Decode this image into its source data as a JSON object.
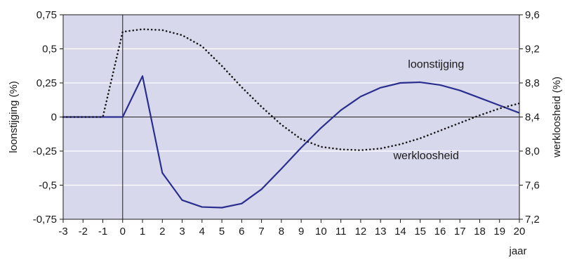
{
  "chart_data": {
    "type": "line",
    "title": "",
    "xlabel": "jaar",
    "ylabel_left": "loonstijging (%)",
    "ylabel_right": "werkloosheid (%)",
    "xlim": [
      -3,
      20
    ],
    "ylim_left": [
      -0.75,
      0.75
    ],
    "ylim_right": [
      7.2,
      9.6
    ],
    "x_ticks": [
      -3,
      -2,
      -1,
      0,
      1,
      2,
      3,
      4,
      5,
      6,
      7,
      8,
      9,
      10,
      11,
      12,
      13,
      14,
      15,
      16,
      17,
      18,
      19,
      20
    ],
    "y_ticks_left": [
      "-0,75",
      "-0,5",
      "-0,25",
      "0",
      "0,25",
      "0,5",
      "0,75"
    ],
    "y_ticks_left_values": [
      -0.75,
      -0.5,
      -0.25,
      0,
      0.25,
      0.5,
      0.75
    ],
    "y_ticks_right": [
      "7,2",
      "7,6",
      "8,0",
      "8,4",
      "8,8",
      "9,2",
      "9,6"
    ],
    "y_ticks_right_values": [
      7.2,
      7.6,
      8.0,
      8.4,
      8.8,
      9.2,
      9.6
    ],
    "grid": true,
    "background_color": "#d8d8ec",
    "series": [
      {
        "name": "loonstijging",
        "axis": "left",
        "style": "solid",
        "color": "#2a2f8f",
        "x": [
          -3,
          -2,
          -1,
          0,
          1,
          2,
          3,
          4,
          5,
          6,
          7,
          8,
          9,
          10,
          11,
          12,
          13,
          14,
          15,
          16,
          17,
          18,
          19,
          20
        ],
        "y": [
          0,
          0,
          0,
          0,
          0.3,
          -0.41,
          -0.61,
          -0.66,
          -0.665,
          -0.635,
          -0.53,
          -0.38,
          -0.225,
          -0.08,
          0.05,
          0.15,
          0.215,
          0.25,
          0.255,
          0.235,
          0.195,
          0.14,
          0.085,
          0.03
        ]
      },
      {
        "name": "werkloosheid",
        "axis": "right",
        "style": "dotted",
        "color": "#1a1a1a",
        "x": [
          -3,
          -2,
          -1,
          0,
          1,
          2,
          3,
          4,
          5,
          6,
          7,
          8,
          9,
          10,
          11,
          12,
          13,
          14,
          15,
          16,
          17,
          18,
          19,
          20
        ],
        "y": [
          8.4,
          8.4,
          8.4,
          9.4,
          9.43,
          9.42,
          9.36,
          9.23,
          9.0,
          8.75,
          8.52,
          8.31,
          8.14,
          8.05,
          8.02,
          8.01,
          8.03,
          8.08,
          8.15,
          8.24,
          8.33,
          8.42,
          8.5,
          8.56
        ]
      }
    ],
    "annotations": [
      {
        "text": "loonstijging",
        "x": 15.8,
        "axis": "left",
        "y": 0.36
      },
      {
        "text": "werkloosheid",
        "x": 15.3,
        "axis": "left",
        "y": -0.31
      }
    ]
  }
}
